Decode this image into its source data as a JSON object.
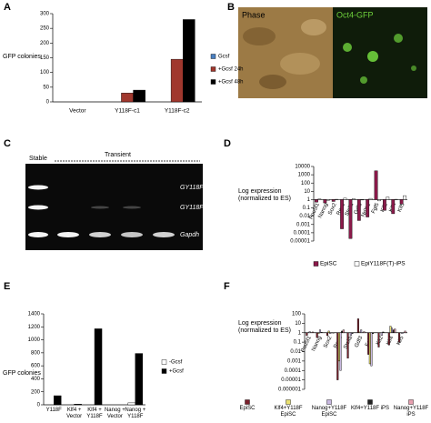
{
  "panel_labels": [
    "A",
    "B",
    "C",
    "D",
    "E",
    "F"
  ],
  "images": {
    "phase_label": "Phase",
    "gfp_label": "Oct4-GFP"
  },
  "gel": {
    "stable": "Stable",
    "transient": "Transient",
    "bands": [
      "GY118F",
      "GY118F",
      "Gapdh"
    ]
  },
  "chart_data": [
    {
      "type": "bar",
      "y_label": [
        "GFP colonies"
      ],
      "categories": [
        "Vector",
        "Y118F-c1",
        "Y118F-c2"
      ],
      "series": [
        {
          "name": "Gcsf",
          "color": "#4a7fc1",
          "values": [
            0,
            0,
            0
          ]
        },
        {
          "name": "+Gcsf 24h",
          "color": "#a0382e",
          "values": [
            0,
            30,
            145
          ]
        },
        {
          "name": "+Gcsf 48h",
          "color": "#000000",
          "values": [
            0,
            40,
            280
          ]
        }
      ],
      "ylim": [
        0,
        300
      ],
      "yticks": [
        0,
        50,
        100,
        150,
        200,
        250,
        300
      ]
    },
    {
      "type": "bar",
      "log_scale": true,
      "y_label": [
        "Log expression",
        "(normalized to ES)"
      ],
      "categories": [
        "Pou5f1",
        "Nanog",
        "Sox2",
        "Rex1",
        "Stella",
        "Gdf3",
        "Nr0b1",
        "Fgf5",
        "Klf2",
        "Klf4",
        "Klf5"
      ],
      "series": [
        {
          "name": "EpiSC",
          "color": "#8b1a4a",
          "values": [
            0.5,
            0.4,
            0.6,
            0.0003,
            2e-05,
            0.003,
            0.008,
            3000,
            0.05,
            0.02,
            0.3
          ]
        },
        {
          "name": "EpiY118F(T)-iPS",
          "color": "#ffffff",
          "values": [
            1.2,
            0.8,
            1.1,
            1.5,
            1.3,
            0.9,
            1.4,
            0.7,
            2,
            1.1,
            3
          ]
        }
      ],
      "ylim": [
        1e-05,
        10000
      ],
      "yticks": [
        10000,
        1000,
        100,
        10,
        1,
        0.1,
        0.01,
        0.001,
        0.0001,
        1e-05
      ]
    },
    {
      "type": "bar",
      "y_label": [
        "GFP colonies"
      ],
      "categories": [
        "Y118F",
        "Klf4 + Vector",
        "Klf4 + Y118F",
        "Nanog + Vector",
        "Nanog + Y118F"
      ],
      "series": [
        {
          "name": "-Gcsf",
          "color": "#ffffff",
          "values": [
            0,
            0,
            0,
            0,
            30
          ]
        },
        {
          "name": "+Gcsf",
          "color": "#000000",
          "values": [
            140,
            10,
            1170,
            0,
            790
          ]
        }
      ],
      "ylim": [
        0,
        1400
      ],
      "yticks": [
        0,
        200,
        400,
        600,
        800,
        1000,
        1200,
        1400
      ]
    },
    {
      "type": "bar",
      "log_scale": true,
      "y_label": [
        "Log expression",
        "(normalized to ES)"
      ],
      "categories": [
        "Pou5f1",
        "Nanog",
        "Sox2",
        "Rex1",
        "Stella",
        "Gdf3",
        "Fgf5",
        "Klf2",
        "Klf4",
        "Klf5"
      ],
      "series": [
        {
          "name": "EpiSC",
          "color": "#7a1f2b",
          "values": [
            0.5,
            0.3,
            0.5,
            1e-05,
            0.002,
            30,
            0.005,
            0.03,
            0.05,
            0.1
          ]
        },
        {
          "name": "Klf4+Y118F EpiSC",
          "color": "#e8e070",
          "values": [
            1,
            0.8,
            1.5,
            0.001,
            1,
            1.2,
            0.0005,
            1,
            5,
            1
          ]
        },
        {
          "name": "Nanog+Y118F EpiSC",
          "color": "#c8b8e0",
          "values": [
            1.3,
            2,
            0.8,
            0.0001,
            0.5,
            2,
            0.0003,
            0.5,
            3,
            0.8
          ]
        },
        {
          "name": "Klf4+Y118F iPS",
          "color": "#222222",
          "values": [
            1,
            1.1,
            1,
            1.5,
            0.8,
            1,
            0.8,
            1.2,
            2,
            1
          ]
        },
        {
          "name": "Nanog+Y118F iPS",
          "color": "#e8a0b0",
          "values": [
            1.2,
            1,
            0.9,
            2,
            1,
            1.3,
            1,
            1,
            2.5,
            1.5
          ]
        }
      ],
      "ylim": [
        1e-06,
        100
      ],
      "yticks": [
        100,
        10,
        1,
        0.1,
        0.01,
        0.001,
        0.0001,
        1e-05,
        1e-06
      ]
    }
  ]
}
